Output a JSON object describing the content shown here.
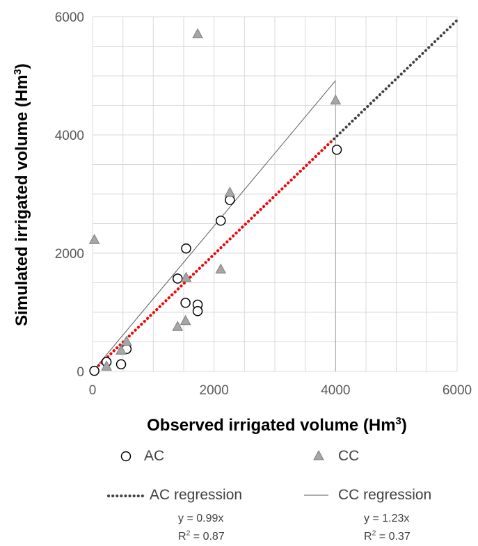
{
  "chart_data": {
    "type": "scatter",
    "xlabel": "Observed irrigated volume  (Hm",
    "xlabel_sup": "3",
    "xlabel_end": ")",
    "ylabel": "Simulated irrigated  volume (Hm",
    "ylabel_sup": "3",
    "ylabel_end": ")",
    "xlim": [
      0,
      6000
    ],
    "ylim": [
      0,
      6000
    ],
    "xticks": [
      0,
      2000,
      4000,
      6000
    ],
    "yticks": [
      0,
      2000,
      4000,
      6000
    ],
    "grid": true,
    "series": [
      {
        "name": "AC",
        "marker": "circle-open",
        "color": "#000000",
        "points": [
          [
            30,
            10
          ],
          [
            230,
            160
          ],
          [
            470,
            120
          ],
          [
            560,
            380
          ],
          [
            1400,
            1570
          ],
          [
            1530,
            1160
          ],
          [
            1540,
            2080
          ],
          [
            1730,
            1130
          ],
          [
            1730,
            1020
          ],
          [
            2110,
            2550
          ],
          [
            2260,
            2900
          ],
          [
            4020,
            3750
          ]
        ]
      },
      {
        "name": "CC",
        "marker": "triangle",
        "color": "#a6a6a6",
        "points": [
          [
            30,
            2220
          ],
          [
            230,
            80
          ],
          [
            470,
            350
          ],
          [
            560,
            500
          ],
          [
            1400,
            750
          ],
          [
            1530,
            850
          ],
          [
            1540,
            1580
          ],
          [
            1730,
            5700
          ],
          [
            2110,
            1720
          ],
          [
            2260,
            3020
          ],
          [
            4000,
            4580
          ]
        ]
      }
    ],
    "lines": [
      {
        "name": "AC regression",
        "style": "dotted",
        "color": "#404040",
        "x": [
          0,
          6000
        ],
        "slope": 0.99
      },
      {
        "name": "AC regression overlay",
        "style": "dotted",
        "color": "#ff0000",
        "x": [
          0,
          3950
        ],
        "slope": 0.99
      },
      {
        "name": "CC regression",
        "style": "solid",
        "color": "#595959",
        "x": [
          0,
          4000
        ],
        "slope": 1.23
      }
    ],
    "extra_vline": {
      "x": 4000,
      "y": [
        0,
        4900
      ]
    }
  },
  "legend": {
    "ac_label": "AC",
    "cc_label": "CC",
    "ac_reg_label": "AC regression",
    "cc_reg_label": "CC regression",
    "ac_eq": "y = 0.99x",
    "cc_eq": "y = 1.23x",
    "r2_prefix": "R",
    "r2_sup": "2",
    "ac_r2_value": " = 0.87",
    "cc_r2_value": " = 0.37"
  }
}
